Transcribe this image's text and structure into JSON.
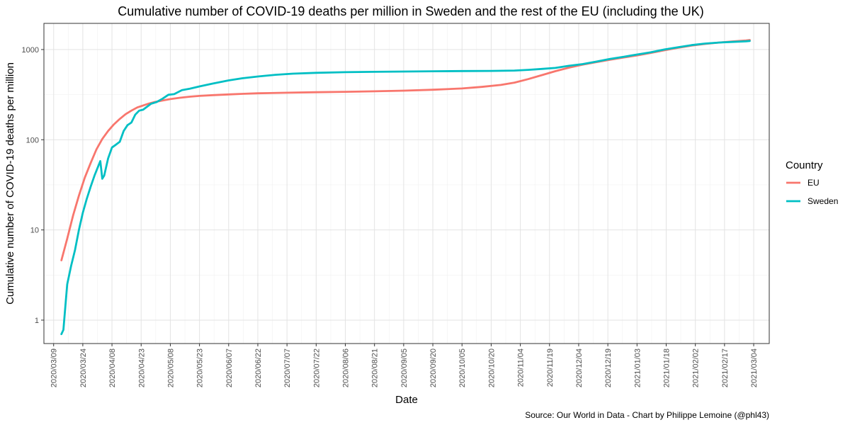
{
  "chart_data": {
    "type": "line",
    "title": "Cumulative number of COVID-19 deaths per million in Sweden and the rest of the EU (including the UK)",
    "xlabel": "Date",
    "ylabel": "Cumulative number of COVID-19 deaths per million",
    "caption": "Source: Our World in Data - Chart by Philippe Lemoine (@phl43)",
    "y_scale": "log10",
    "ylim": [
      0.55,
      1950
    ],
    "xlim": [
      "2020-03-04",
      "2021-03-12"
    ],
    "x_ticks": [
      "2020/03/09",
      "2020/03/24",
      "2020/04/08",
      "2020/04/23",
      "2020/05/08",
      "2020/05/23",
      "2020/06/07",
      "2020/06/22",
      "2020/07/07",
      "2020/07/22",
      "2020/08/06",
      "2020/08/21",
      "2020/09/05",
      "2020/09/20",
      "2020/10/05",
      "2020/10/20",
      "2020/11/04",
      "2020/11/19",
      "2020/12/04",
      "2020/12/19",
      "2021/01/03",
      "2021/01/18",
      "2021/02/02",
      "2021/02/17",
      "2021/03/04"
    ],
    "y_ticks": [
      1,
      10,
      100,
      1000
    ],
    "y_tick_labels": [
      "1",
      "10",
      "100",
      "1000"
    ],
    "grid": true,
    "legend": {
      "title": "Country",
      "position": "right"
    },
    "series": [
      {
        "name": "EU",
        "color": "#F8766D",
        "points": [
          [
            "2020-03-13",
            4.6
          ],
          [
            "2020-03-16",
            8.0
          ],
          [
            "2020-03-19",
            14.5
          ],
          [
            "2020-03-22",
            24.0
          ],
          [
            "2020-03-25",
            38.0
          ],
          [
            "2020-03-28",
            55.0
          ],
          [
            "2020-03-31",
            78.0
          ],
          [
            "2020-04-03",
            102.0
          ],
          [
            "2020-04-06",
            125.0
          ],
          [
            "2020-04-09",
            148.0
          ],
          [
            "2020-04-12",
            170.0
          ],
          [
            "2020-04-15",
            192.0
          ],
          [
            "2020-04-18",
            210.0
          ],
          [
            "2020-04-21",
            228.0
          ],
          [
            "2020-04-24",
            240.0
          ],
          [
            "2020-04-27",
            252.0
          ],
          [
            "2020-04-30",
            262.0
          ],
          [
            "2020-05-04",
            272.0
          ],
          [
            "2020-05-08",
            282.0
          ],
          [
            "2020-05-13",
            292.0
          ],
          [
            "2020-05-18",
            300.0
          ],
          [
            "2020-05-23",
            306.0
          ],
          [
            "2020-05-30",
            312.0
          ],
          [
            "2020-06-07",
            318.0
          ],
          [
            "2020-06-15",
            323.0
          ],
          [
            "2020-06-22",
            327.0
          ],
          [
            "2020-07-07",
            332.0
          ],
          [
            "2020-07-22",
            336.0
          ],
          [
            "2020-08-06",
            340.0
          ],
          [
            "2020-08-21",
            344.0
          ],
          [
            "2020-09-05",
            350.0
          ],
          [
            "2020-09-20",
            358.0
          ],
          [
            "2020-10-05",
            370.0
          ],
          [
            "2020-10-15",
            385.0
          ],
          [
            "2020-10-25",
            405.0
          ],
          [
            "2020-11-01",
            430.0
          ],
          [
            "2020-11-08",
            470.0
          ],
          [
            "2020-11-15",
            520.0
          ],
          [
            "2020-11-22",
            575.0
          ],
          [
            "2020-11-29",
            630.0
          ],
          [
            "2020-12-06",
            680.0
          ],
          [
            "2020-12-13",
            725.0
          ],
          [
            "2020-12-20",
            770.0
          ],
          [
            "2020-12-27",
            815.0
          ],
          [
            "2021-01-03",
            860.0
          ],
          [
            "2021-01-10",
            915.0
          ],
          [
            "2021-01-17",
            980.0
          ],
          [
            "2021-01-24",
            1045.0
          ],
          [
            "2021-01-31",
            1105.0
          ],
          [
            "2021-02-07",
            1155.0
          ],
          [
            "2021-02-14",
            1195.0
          ],
          [
            "2021-02-21",
            1230.0
          ],
          [
            "2021-02-28",
            1260.0
          ],
          [
            "2021-03-02",
            1275.0
          ]
        ]
      },
      {
        "name": "Sweden",
        "color": "#00BFC4",
        "points": [
          [
            "2020-03-13",
            0.7
          ],
          [
            "2020-03-14",
            0.78
          ],
          [
            "2020-03-15",
            1.4
          ],
          [
            "2020-03-16",
            2.5
          ],
          [
            "2020-03-18",
            4.0
          ],
          [
            "2020-03-20",
            6.0
          ],
          [
            "2020-03-22",
            10.0
          ],
          [
            "2020-03-24",
            15.5
          ],
          [
            "2020-03-26",
            22.0
          ],
          [
            "2020-03-28",
            30.0
          ],
          [
            "2020-03-30",
            40.0
          ],
          [
            "2020-04-02",
            58.0
          ],
          [
            "2020-04-03",
            37.0
          ],
          [
            "2020-04-04",
            40.0
          ],
          [
            "2020-04-06",
            62.0
          ],
          [
            "2020-04-08",
            82.0
          ],
          [
            "2020-04-10",
            88.0
          ],
          [
            "2020-04-12",
            95.0
          ],
          [
            "2020-04-14",
            125.0
          ],
          [
            "2020-04-16",
            145.0
          ],
          [
            "2020-04-18",
            155.0
          ],
          [
            "2020-04-20",
            190.0
          ],
          [
            "2020-04-22",
            210.0
          ],
          [
            "2020-04-24",
            215.0
          ],
          [
            "2020-04-28",
            250.0
          ],
          [
            "2020-05-01",
            262.0
          ],
          [
            "2020-05-04",
            285.0
          ],
          [
            "2020-05-07",
            315.0
          ],
          [
            "2020-05-10",
            320.0
          ],
          [
            "2020-05-14",
            355.0
          ],
          [
            "2020-05-18",
            368.0
          ],
          [
            "2020-05-23",
            390.0
          ],
          [
            "2020-05-30",
            420.0
          ],
          [
            "2020-06-07",
            455.0
          ],
          [
            "2020-06-14",
            480.0
          ],
          [
            "2020-06-22",
            502.0
          ],
          [
            "2020-07-01",
            525.0
          ],
          [
            "2020-07-10",
            540.0
          ],
          [
            "2020-07-22",
            552.0
          ],
          [
            "2020-08-06",
            561.0
          ],
          [
            "2020-08-21",
            566.0
          ],
          [
            "2020-09-05",
            570.0
          ],
          [
            "2020-09-20",
            574.0
          ],
          [
            "2020-10-05",
            577.0
          ],
          [
            "2020-10-20",
            580.0
          ],
          [
            "2020-11-01",
            585.0
          ],
          [
            "2020-11-08",
            595.0
          ],
          [
            "2020-11-15",
            610.0
          ],
          [
            "2020-11-22",
            625.0
          ],
          [
            "2020-11-29",
            660.0
          ],
          [
            "2020-12-06",
            690.0
          ],
          [
            "2020-12-13",
            735.0
          ],
          [
            "2020-12-20",
            785.0
          ],
          [
            "2020-12-27",
            830.0
          ],
          [
            "2021-01-03",
            880.0
          ],
          [
            "2021-01-10",
            930.0
          ],
          [
            "2021-01-17",
            1000.0
          ],
          [
            "2021-01-24",
            1060.0
          ],
          [
            "2021-01-31",
            1120.0
          ],
          [
            "2021-02-07",
            1165.0
          ],
          [
            "2021-02-14",
            1195.0
          ],
          [
            "2021-02-21",
            1215.0
          ],
          [
            "2021-02-28",
            1235.0
          ],
          [
            "2021-03-02",
            1245.0
          ]
        ]
      }
    ]
  }
}
